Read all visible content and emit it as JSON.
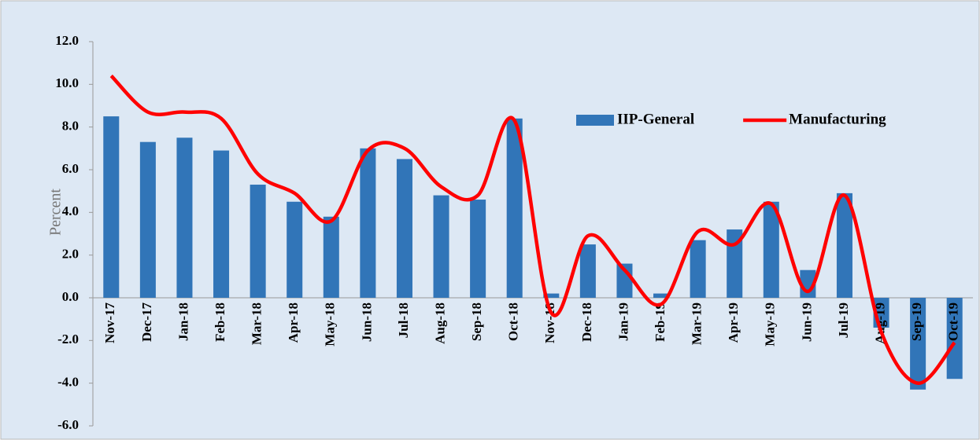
{
  "chart_data": {
    "type": "bar_line",
    "y_label": "Percent",
    "categories": [
      "Nov-17",
      "Dec-17",
      "Jan-18",
      "Feb-18",
      "Mar-18",
      "Apr-18",
      "May-18",
      "Jun-18",
      "Jul-18",
      "Aug-18",
      "Sep-18",
      "Oct-18",
      "Nov-18",
      "Dec-18",
      "Jan-19",
      "Feb-19",
      "Mar-19",
      "Apr-19",
      "May-19",
      "Jun-19",
      "Jul-19",
      "Aug-19",
      "Sep-19",
      "Oct-19"
    ],
    "series": [
      {
        "name": "IIP-General",
        "type": "bar",
        "color": "#3175b8",
        "values": [
          8.5,
          7.3,
          7.5,
          6.9,
          5.3,
          4.5,
          3.8,
          7.0,
          6.5,
          4.8,
          4.6,
          8.4,
          0.2,
          2.5,
          1.6,
          0.2,
          2.7,
          3.2,
          4.5,
          1.3,
          4.9,
          -1.4,
          -4.3,
          -3.8
        ]
      },
      {
        "name": "Manufacturing",
        "type": "line",
        "color": "#ff0000",
        "values": [
          10.4,
          8.7,
          8.7,
          8.4,
          5.8,
          4.9,
          3.6,
          6.9,
          7.0,
          5.2,
          4.8,
          8.3,
          -0.7,
          2.9,
          1.3,
          -0.3,
          3.1,
          2.5,
          4.4,
          0.3,
          4.8,
          -1.6,
          -4.0,
          -2.1
        ]
      }
    ],
    "ylim": [
      -6,
      12
    ],
    "yticks": [
      {
        "value": -6,
        "label": "-6.0"
      },
      {
        "value": -4,
        "label": "-4.0"
      },
      {
        "value": -2,
        "label": "-2.0"
      },
      {
        "value": 0,
        "label": "0.0"
      },
      {
        "value": 2,
        "label": "2.0"
      },
      {
        "value": 4,
        "label": "4.0"
      },
      {
        "value": 6,
        "label": "6.0"
      },
      {
        "value": 8,
        "label": "8.0"
      },
      {
        "value": 10,
        "label": "10.0"
      },
      {
        "value": 12,
        "label": "12.0"
      }
    ],
    "legend": "upper right",
    "grid": false
  }
}
